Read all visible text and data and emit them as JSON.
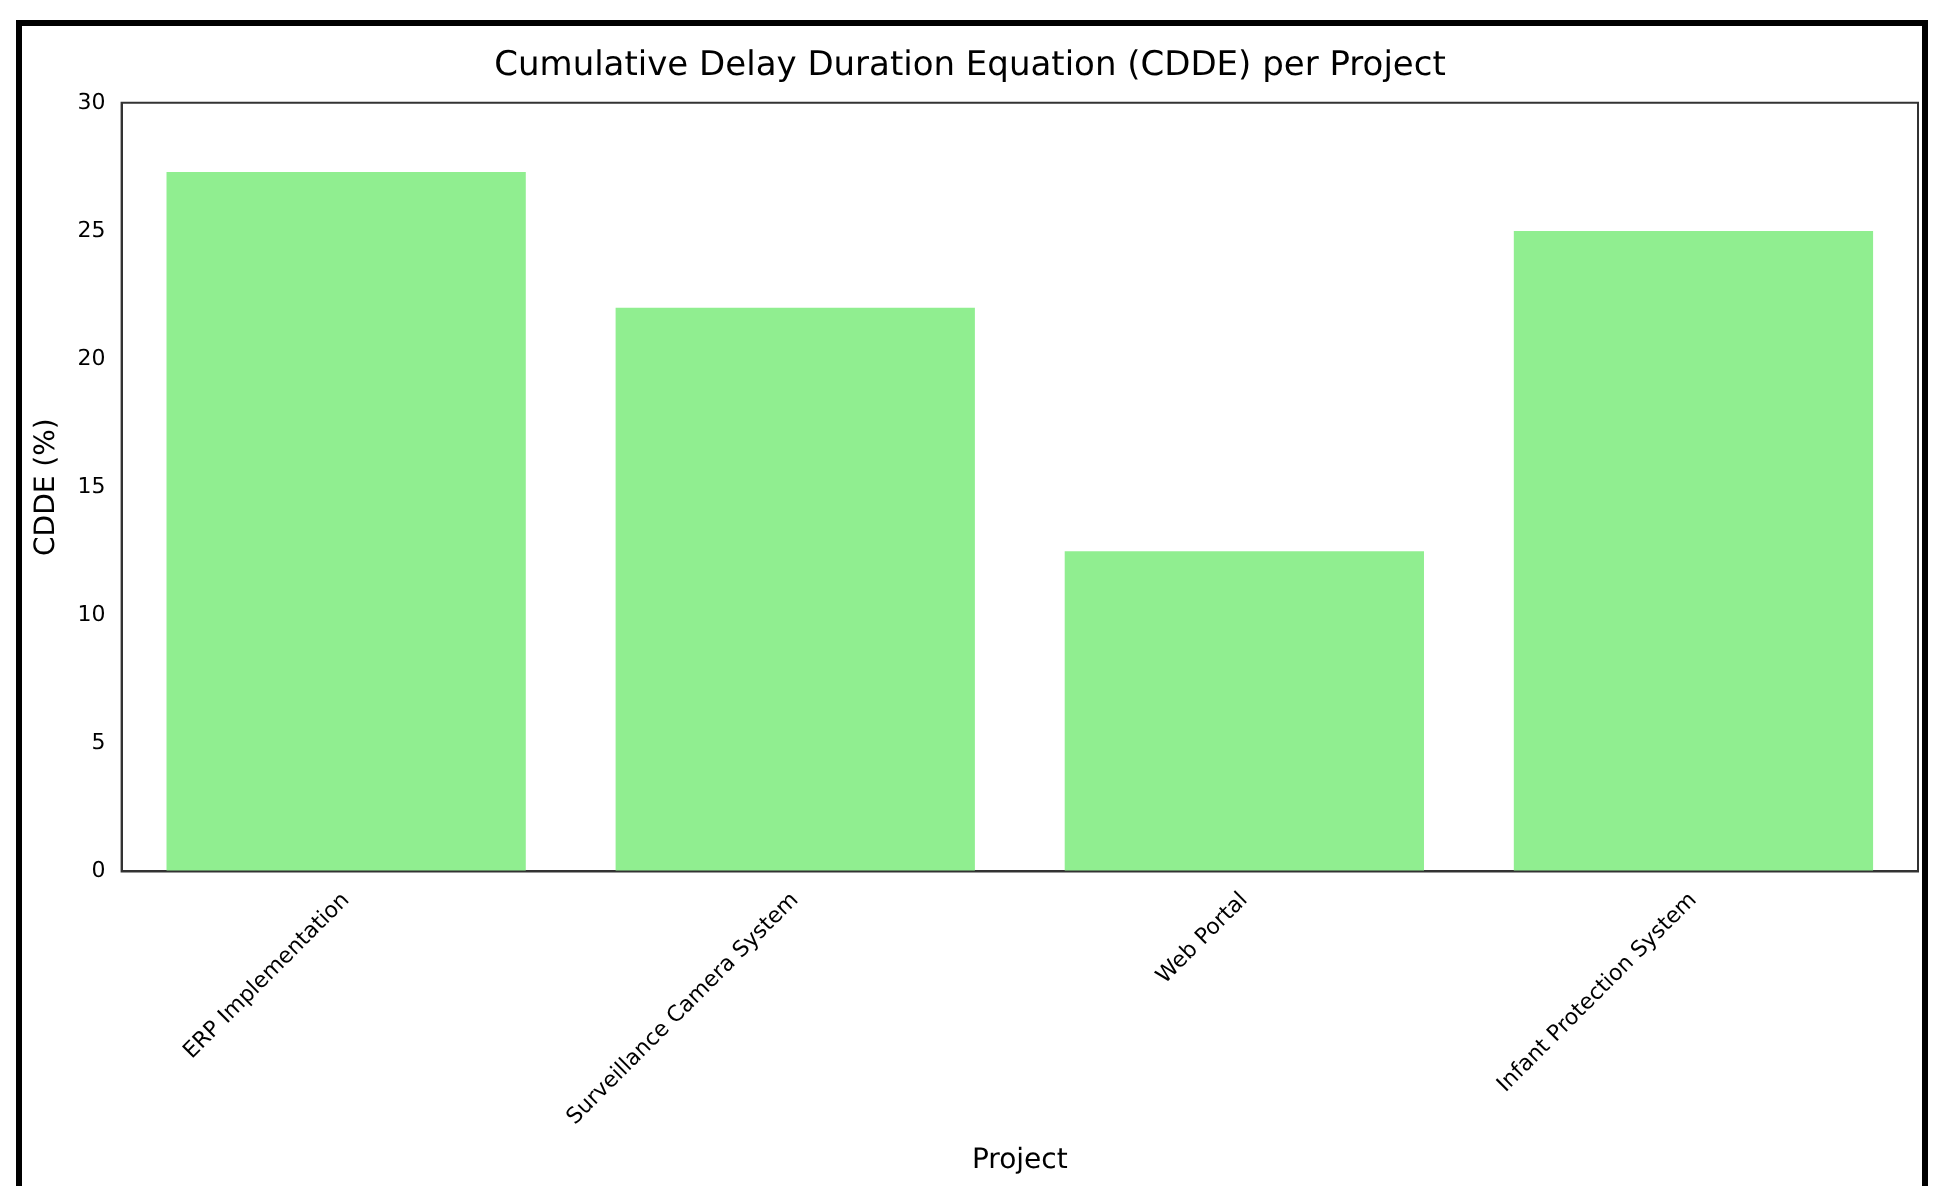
{
  "chart_data": {
    "type": "bar",
    "title": "Cumulative Delay Duration Equation (CDDE) per Project",
    "xlabel": "Project",
    "ylabel": "CDDE (%)",
    "categories": [
      "ERP Implementation",
      "Surveillance Camera System",
      "Web Portal",
      "Infant Protection System"
    ],
    "values": [
      27.3,
      22,
      12.5,
      25
    ],
    "color": "#90ee90",
    "ylim": [
      0,
      30
    ],
    "yticks": [
      0,
      5,
      10,
      15,
      20,
      25,
      30
    ],
    "grid": false,
    "legend": false
  }
}
